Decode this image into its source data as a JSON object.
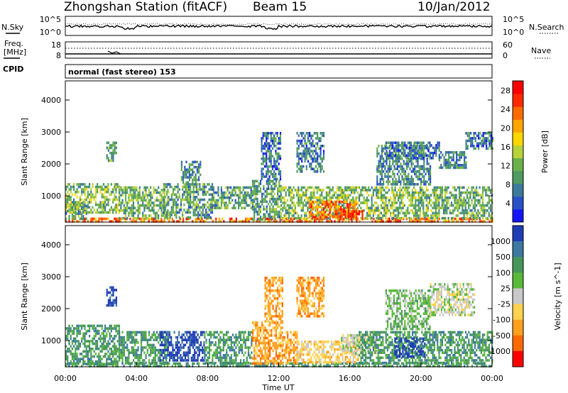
{
  "header": {
    "station": "Zhongshan Station (fitACF)",
    "beam": "Beam 15",
    "date": "10/Jan/2012"
  },
  "noise_panel": {
    "left_label": "N.Sky",
    "left_ticks": [
      "10^5",
      "10^0"
    ],
    "right_ticks": [
      "10^5",
      "10^0"
    ],
    "right_label": "N.Search"
  },
  "freq_panel": {
    "left_label_1": "Freq.",
    "left_label_2": "[MHz]",
    "left_ticks": [
      "18",
      "8"
    ],
    "right_ticks": [
      "60",
      "0"
    ],
    "right_label": "Nave"
  },
  "cpid_panel": {
    "label": "CPID",
    "text": "normal (fast stereo) 153"
  },
  "chart_data": [
    {
      "type": "heatmap",
      "name": "power",
      "title": "",
      "xlabel": "",
      "ylabel": "Slant Range [km]",
      "xlim_hours": [
        0,
        24
      ],
      "ylim": [
        180,
        4600
      ],
      "y_ticks": [
        1000,
        2000,
        3000,
        4000
      ],
      "y_tick_labels": [
        "1000",
        "2000",
        "3000",
        "4000"
      ],
      "colorbar": {
        "label": "Power [dB]",
        "tick_values": [
          4,
          8,
          12,
          16,
          20,
          24,
          28
        ],
        "tick_labels": [
          "4",
          "8",
          "12",
          "16",
          "20",
          "24",
          "28"
        ],
        "range": [
          0,
          30
        ],
        "colors": [
          "#1414ff",
          "#2a50c8",
          "#3c7a9a",
          "#4e9a60",
          "#6ab04a",
          "#b8d23a",
          "#ffd700",
          "#ffa500",
          "#ff6a00",
          "#ff2a00",
          "#ff0000"
        ]
      },
      "echo_regions": [
        {
          "t": [
            0.0,
            24.0
          ],
          "r": [
            180,
            320
          ],
          "level": 0.8
        },
        {
          "t": [
            0.0,
            1.2
          ],
          "r": [
            300,
            800
          ],
          "level": 0.3
        },
        {
          "t": [
            0.0,
            3.0
          ],
          "r": [
            500,
            1400
          ],
          "level": 0.4
        },
        {
          "t": [
            2.3,
            2.9
          ],
          "r": [
            2100,
            2700
          ],
          "level": 0.35
        },
        {
          "t": [
            3.0,
            5.8
          ],
          "r": [
            300,
            1300
          ],
          "level": 0.35
        },
        {
          "t": [
            5.5,
            8.3
          ],
          "r": [
            300,
            1400
          ],
          "level": 0.3
        },
        {
          "t": [
            6.5,
            7.6
          ],
          "r": [
            1400,
            2100
          ],
          "level": 0.25
        },
        {
          "t": [
            8.3,
            10.5
          ],
          "r": [
            600,
            1300
          ],
          "level": 0.3
        },
        {
          "t": [
            10.5,
            12.1
          ],
          "r": [
            300,
            1500
          ],
          "level": 0.3
        },
        {
          "t": [
            11.0,
            12.1
          ],
          "r": [
            1500,
            3000
          ],
          "level": 0.2
        },
        {
          "t": [
            12.1,
            20.8
          ],
          "r": [
            300,
            1300
          ],
          "level": 0.4
        },
        {
          "t": [
            13.7,
            16.4
          ],
          "r": [
            300,
            850
          ],
          "level": 0.8
        },
        {
          "t": [
            15.0,
            16.7
          ],
          "r": [
            250,
            550
          ],
          "level": 0.9
        },
        {
          "t": [
            13.0,
            14.5
          ],
          "r": [
            1800,
            3000
          ],
          "level": 0.2
        },
        {
          "t": [
            17.5,
            20.5
          ],
          "r": [
            1400,
            2600
          ],
          "level": 0.25
        },
        {
          "t": [
            18.0,
            21.0
          ],
          "r": [
            2200,
            2700
          ],
          "level": 0.2
        },
        {
          "t": [
            20.8,
            24.0
          ],
          "r": [
            300,
            1300
          ],
          "level": 0.35
        },
        {
          "t": [
            21.0,
            22.5
          ],
          "r": [
            1900,
            2400
          ],
          "level": 0.25
        },
        {
          "t": [
            22.5,
            24.0
          ],
          "r": [
            2500,
            3000
          ],
          "level": 0.2
        }
      ]
    },
    {
      "type": "heatmap",
      "name": "velocity",
      "title": "",
      "xlabel": "Time UT",
      "ylabel": "Slant Range [km]",
      "xlim_hours": [
        0,
        24
      ],
      "ylim": [
        180,
        4600
      ],
      "x_ticks": [
        0,
        4,
        8,
        12,
        16,
        20,
        24
      ],
      "x_tick_labels": [
        "00:00",
        "04:00",
        "08:00",
        "12:00",
        "16:00",
        "20:00",
        "00:00"
      ],
      "y_ticks": [
        1000,
        2000,
        3000,
        4000
      ],
      "y_tick_labels": [
        "1000",
        "2000",
        "3000",
        "4000"
      ],
      "colorbar": {
        "label": "Velocity [m s^-1]",
        "tick_labels": [
          "1000",
          "500",
          "100",
          "25",
          "-25",
          "-100",
          "-500",
          "-1000"
        ],
        "colors": [
          "#1e3cb4",
          "#3c78a0",
          "#46965a",
          "#5ab83a",
          "#c8c8c8",
          "#ffd250",
          "#ffa01e",
          "#ff6a00",
          "#ff0000"
        ]
      },
      "echo_regions": [
        {
          "t": [
            0.0,
            24.0
          ],
          "r": [
            180,
            320
          ],
          "level": 2
        },
        {
          "t": [
            0.0,
            3.0
          ],
          "r": [
            300,
            1500
          ],
          "level": 2
        },
        {
          "t": [
            2.3,
            2.9
          ],
          "r": [
            2100,
            2700
          ],
          "level": 0
        },
        {
          "t": [
            3.0,
            5.8
          ],
          "r": [
            300,
            1300
          ],
          "level": 2
        },
        {
          "t": [
            5.3,
            7.8
          ],
          "r": [
            400,
            1300
          ],
          "level": 0
        },
        {
          "t": [
            7.8,
            10.5
          ],
          "r": [
            300,
            1300
          ],
          "level": 2
        },
        {
          "t": [
            10.5,
            12.2
          ],
          "r": [
            300,
            1600
          ],
          "level": 6
        },
        {
          "t": [
            11.2,
            12.2
          ],
          "r": [
            1600,
            3000
          ],
          "level": 6
        },
        {
          "t": [
            12.2,
            13.0
          ],
          "r": [
            300,
            1300
          ],
          "level": 6
        },
        {
          "t": [
            13.0,
            16.5
          ],
          "r": [
            300,
            1000
          ],
          "level": 5
        },
        {
          "t": [
            15.5,
            17.5
          ],
          "r": [
            600,
            1200
          ],
          "level": 4
        },
        {
          "t": [
            16.5,
            24.0
          ],
          "r": [
            300,
            1300
          ],
          "level": 2
        },
        {
          "t": [
            18.5,
            20.2
          ],
          "r": [
            500,
            1100
          ],
          "level": 0
        },
        {
          "t": [
            18.0,
            20.5
          ],
          "r": [
            1400,
            2600
          ],
          "level": 3
        },
        {
          "t": [
            20.5,
            23.0
          ],
          "r": [
            1800,
            2800
          ],
          "level": 4
        },
        {
          "t": [
            13.0,
            14.5
          ],
          "r": [
            1800,
            3000
          ],
          "level": 6
        }
      ]
    }
  ]
}
